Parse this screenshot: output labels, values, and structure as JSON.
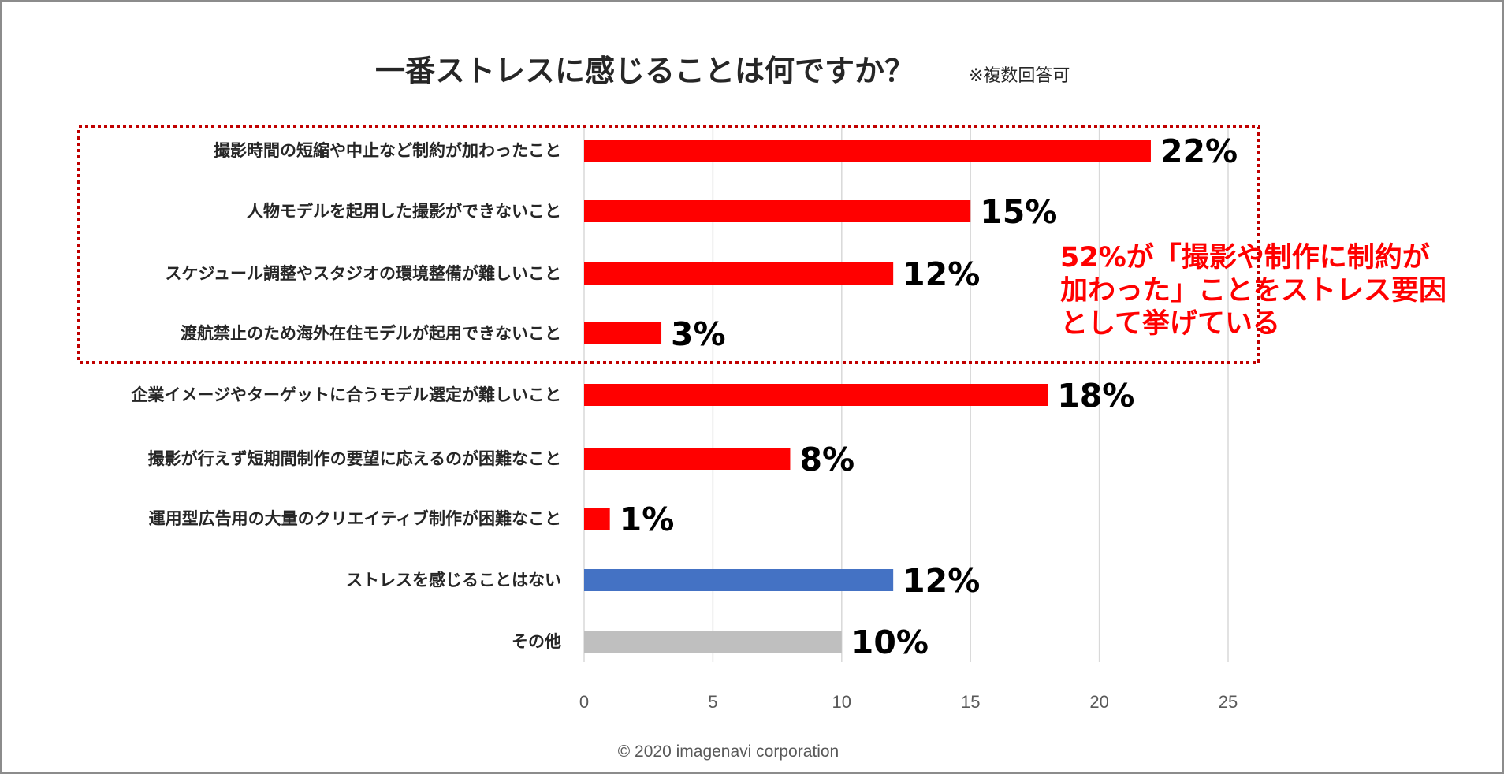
{
  "chart_data": {
    "type": "bar",
    "orientation": "horizontal",
    "title": "一番ストレスに感じることは何ですか？",
    "subtitle": "※複数回答可",
    "categories": [
      "撮影時間の短縮や中止など制約が加わったこと",
      "人物モデルを起用した撮影ができないこと",
      "スケジュール調整やスタジオの環境整備が難しいこと",
      "渡航禁止のため海外在住モデルが起用できないこと",
      "企業イメージやターゲットに合うモデル選定が難しいこと",
      "撮影が行えず短期間制作の要望に応えるのが困難なこと",
      "運用型広告用の大量のクリエイティブ制作が困難なこと",
      "ストレスを感じることはない",
      "その他"
    ],
    "values": [
      22,
      15,
      12,
      3,
      18,
      8,
      1,
      12,
      10
    ],
    "data_labels": [
      "22%",
      "15%",
      "12%",
      "3%",
      "18%",
      "8%",
      "1%",
      "12%",
      "10%"
    ],
    "colors": [
      "#ff0000",
      "#ff0000",
      "#ff0000",
      "#ff0000",
      "#ff0000",
      "#ff0000",
      "#ff0000",
      "#4472c4",
      "#bfbfbf"
    ],
    "xlim": [
      0,
      25
    ],
    "xticks": [
      "0",
      "5",
      "10",
      "15",
      "20",
      "25"
    ],
    "grid": true,
    "highlight_box_color": "#c00000",
    "annotation": {
      "lines": [
        "52%が「撮影や制作に制約が",
        "加わった」ことをストレス要因",
        "として挙げている"
      ],
      "color": "#ff0000"
    },
    "footer": "© 2020 imagenavi corporation"
  }
}
